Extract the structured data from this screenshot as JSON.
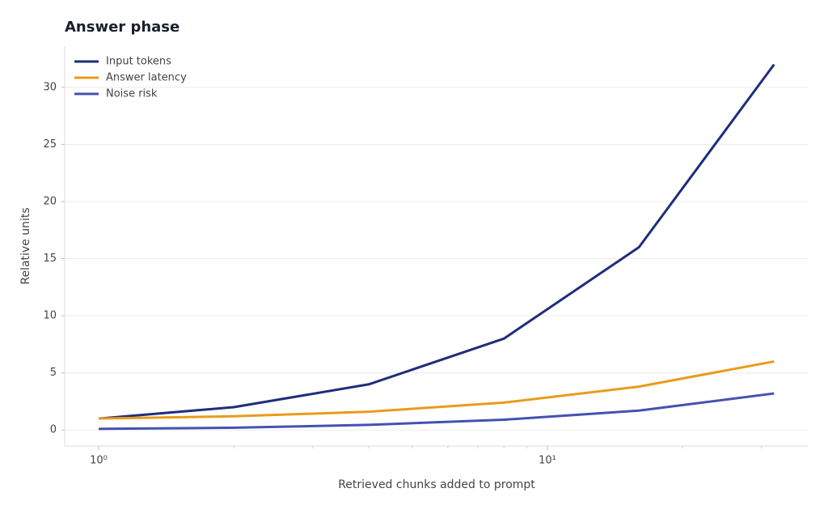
{
  "chart_data": {
    "type": "line",
    "title": "Answer phase",
    "xlabel": "Retrieved chunks added to prompt",
    "ylabel": "Relative units",
    "x": [
      1,
      2,
      4,
      8,
      16,
      32
    ],
    "series": [
      {
        "name": "Input tokens",
        "color": "#1f2d7a",
        "values": [
          1,
          2,
          4,
          8,
          16,
          32
        ]
      },
      {
        "name": "Answer latency",
        "color": "#e89c1a",
        "values": [
          1,
          1.2,
          1.6,
          2.4,
          3.8,
          6.0
        ]
      },
      {
        "name": "Noise risk",
        "color": "#4452b0",
        "values": [
          0.1,
          0.2,
          0.45,
          0.9,
          1.7,
          3.2
        ]
      }
    ],
    "xscale": "log",
    "xlim": [
      0.84,
      38.2
    ],
    "xticks": [
      {
        "value": 1,
        "label": "10⁰"
      },
      {
        "value": 10,
        "label": "10¹"
      }
    ],
    "xminorticks": [
      2,
      3,
      4,
      5,
      6,
      7,
      8,
      9,
      20,
      30
    ],
    "ylim": [
      -1.4,
      33.6
    ],
    "yticks": [
      0,
      5,
      10,
      15,
      20,
      25,
      30
    ],
    "grid": true,
    "legend": "upper-left"
  }
}
